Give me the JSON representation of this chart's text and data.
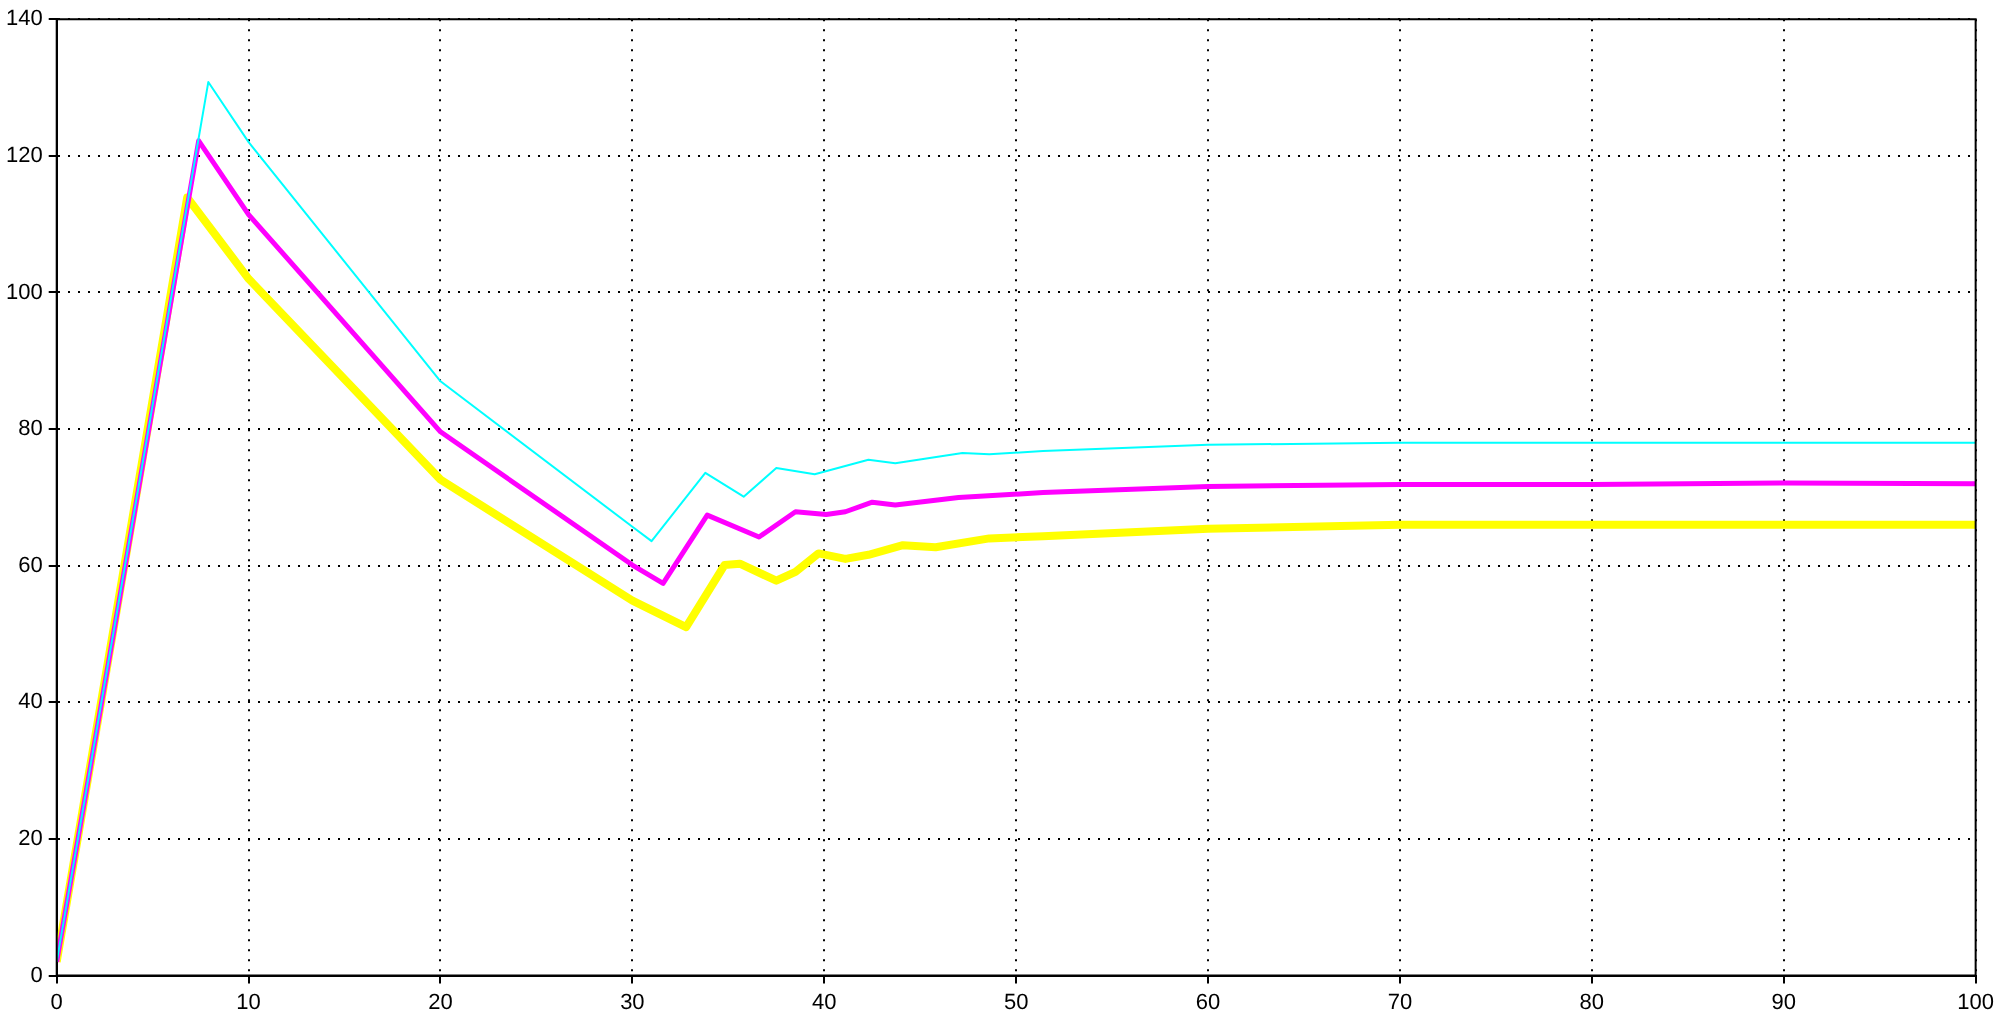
{
  "chart_data": {
    "type": "line",
    "xlim": [
      0,
      100
    ],
    "ylim": [
      0,
      140
    ],
    "xticks": [
      0,
      10,
      20,
      30,
      40,
      50,
      60,
      70,
      80,
      90,
      100
    ],
    "yticks": [
      0,
      20,
      40,
      60,
      80,
      100,
      120,
      140
    ],
    "grid": true,
    "legend": false,
    "marker": "none",
    "line_style": "solid",
    "series": [
      {
        "color": "#00ffff",
        "x": [
          0,
          7.9,
          10,
          20,
          30,
          31,
          33.8,
          35.8,
          37.5,
          39.5,
          42.3,
          43.7,
          47.2,
          48.6,
          51.4,
          60,
          70,
          80,
          90,
          100
        ],
        "values": [
          2,
          130.8,
          122,
          87,
          65.7,
          63.6,
          73.6,
          70.1,
          74.3,
          73.4,
          75.5,
          75,
          76.5,
          76.3,
          76.8,
          77.7,
          78,
          78,
          78,
          78
        ]
      },
      {
        "color": "#ff00ff",
        "x": [
          0,
          7.4,
          10,
          20,
          30,
          31.6,
          33.9,
          36.6,
          38.5,
          40.1,
          41.1,
          42.5,
          43.7,
          47,
          51.4,
          60,
          70,
          80,
          90,
          100
        ],
        "values": [
          2,
          122.2,
          111.4,
          79.6,
          60.1,
          57.4,
          67.4,
          64.2,
          67.9,
          67.5,
          67.9,
          69.3,
          68.9,
          70,
          70.7,
          71.6,
          71.9,
          71.9,
          72.1,
          72
        ]
      },
      {
        "color": "#ffff00",
        "x": [
          0,
          6.8,
          10,
          20,
          30,
          32.8,
          34.8,
          35.6,
          37.5,
          38.5,
          39.7,
          41.1,
          42.3,
          44.1,
          45.8,
          48.6,
          51.4,
          60,
          70,
          80,
          90,
          100
        ],
        "values": [
          2,
          113.9,
          102,
          72.6,
          54.9,
          51,
          60.1,
          60.3,
          57.8,
          59.1,
          61.8,
          61,
          61.6,
          63,
          62.7,
          64,
          64.3,
          65.4,
          66,
          66,
          66,
          66
        ]
      }
    ]
  }
}
